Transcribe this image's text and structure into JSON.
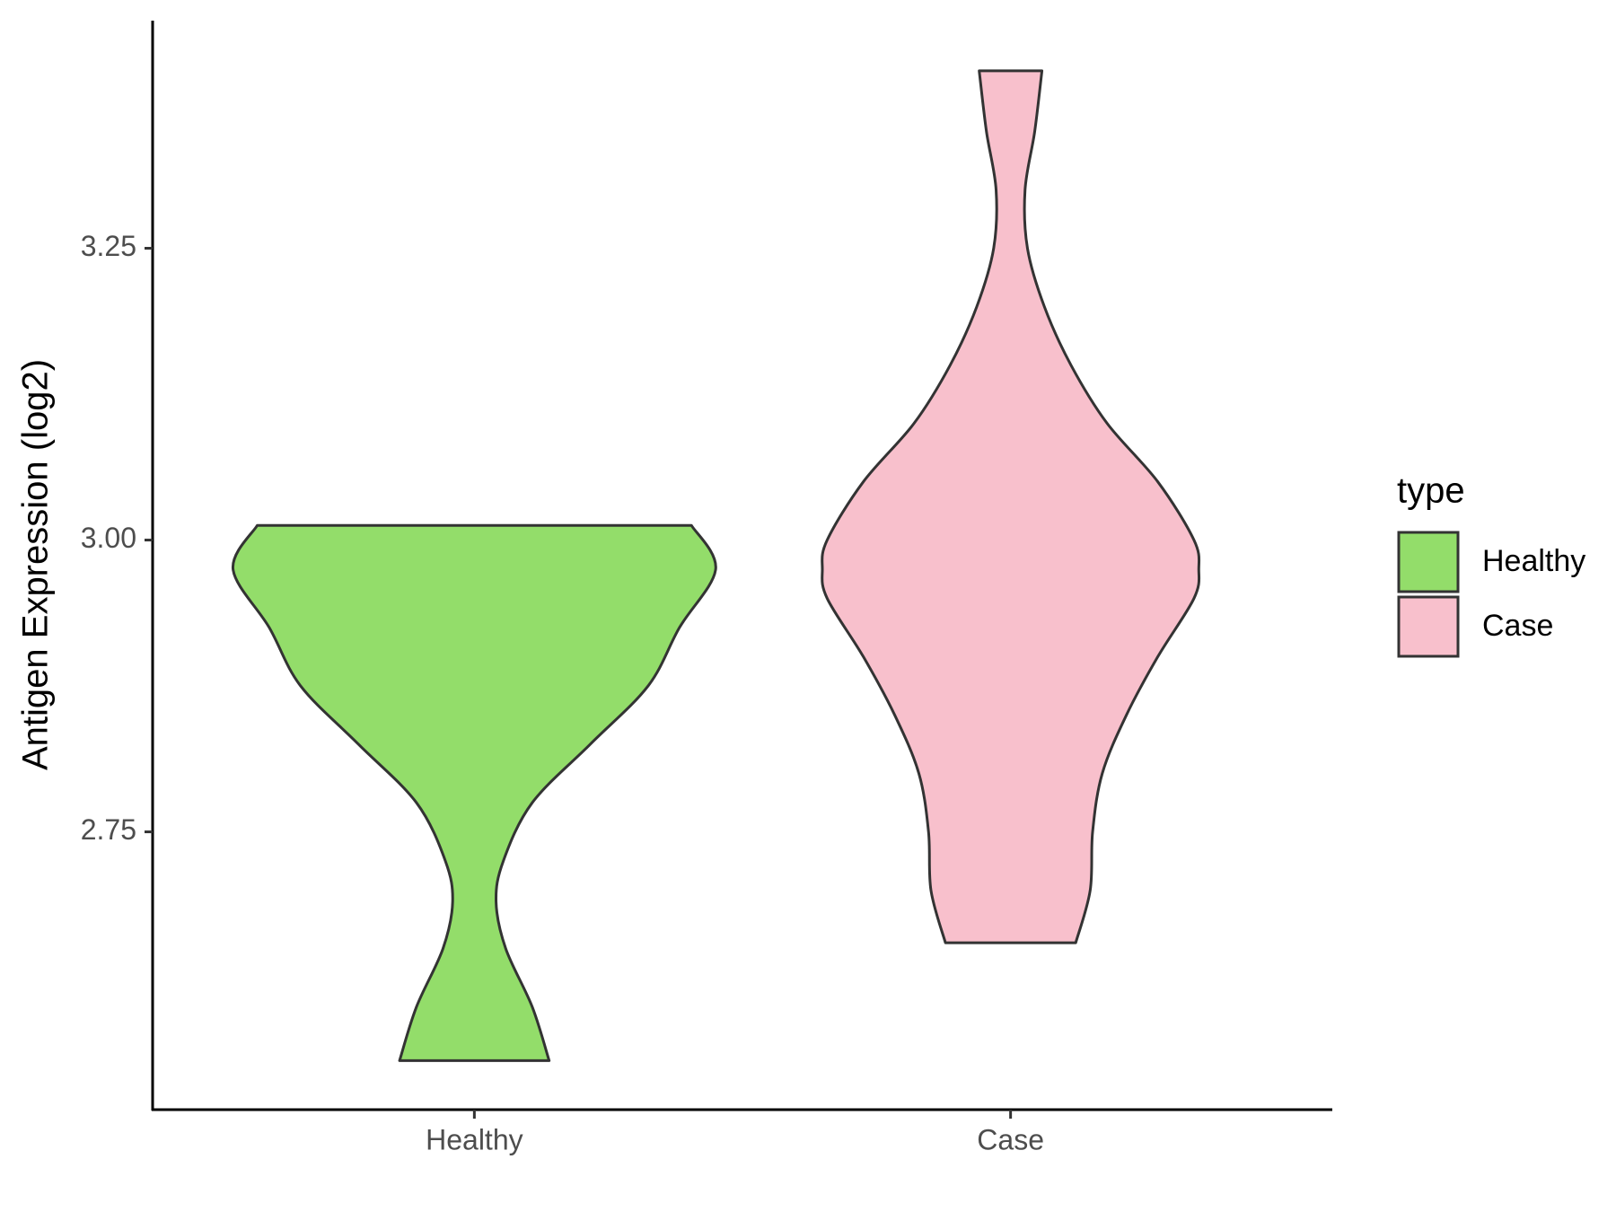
{
  "chart_data": {
    "type": "violin",
    "y_label": "Antigen Expression (log2)",
    "categories": [
      "Healthy",
      "Case"
    ],
    "legend_title": "type",
    "legend_position": "right",
    "ylim": [
      2.512,
      3.445
    ],
    "yticks": [
      {
        "value": 2.75,
        "label": "2.75"
      },
      {
        "value": 3.0,
        "label": "3.00"
      },
      {
        "value": 3.25,
        "label": "3.25"
      }
    ],
    "series": [
      {
        "name": "Healthy",
        "color": "#93dd6a",
        "y": [
          3.0125,
          2.975,
          2.925,
          2.875,
          2.825,
          2.775,
          2.725,
          2.69,
          2.65,
          2.6,
          2.554
        ],
        "density": [
          0.9,
          1.0,
          0.85,
          0.72,
          0.48,
          0.24,
          0.12,
          0.09,
          0.13,
          0.24,
          0.31
        ]
      },
      {
        "name": "Case",
        "color": "#f8c0cc",
        "y": [
          3.402,
          3.35,
          3.3,
          3.25,
          3.2,
          3.15,
          3.1,
          3.05,
          3.0,
          2.975,
          2.95,
          2.9,
          2.85,
          2.8,
          2.75,
          2.7,
          2.655
        ],
        "density": [
          0.13,
          0.1,
          0.06,
          0.07,
          0.14,
          0.25,
          0.4,
          0.61,
          0.76,
          0.78,
          0.76,
          0.61,
          0.48,
          0.38,
          0.34,
          0.33,
          0.27
        ]
      }
    ]
  }
}
